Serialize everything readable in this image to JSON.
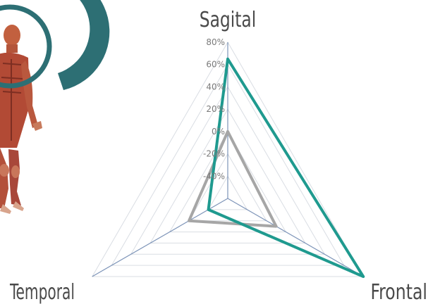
{
  "chart_data": {
    "type": "radar",
    "axes": [
      "Sagital",
      "Frontal",
      "Temporal"
    ],
    "range": [
      -60,
      80
    ],
    "ticks": [
      "80%",
      "60%",
      "40%",
      "20%",
      "0%",
      "-20%",
      "-40%"
    ],
    "tick_values": [
      80,
      60,
      40,
      20,
      0,
      -20,
      -40
    ],
    "gridlines": true,
    "legend": "none",
    "series": [
      {
        "color": "#a6a6a6",
        "values": [
          0,
          -10,
          -20
        ]
      },
      {
        "color": "#1f9a8f",
        "values": [
          65,
          80,
          -40
        ]
      }
    ]
  },
  "decor": {
    "figure": "human-muscle-anatomy-illustration",
    "ring_color": "#2d6f74",
    "arc_color": "#2d6f74"
  }
}
